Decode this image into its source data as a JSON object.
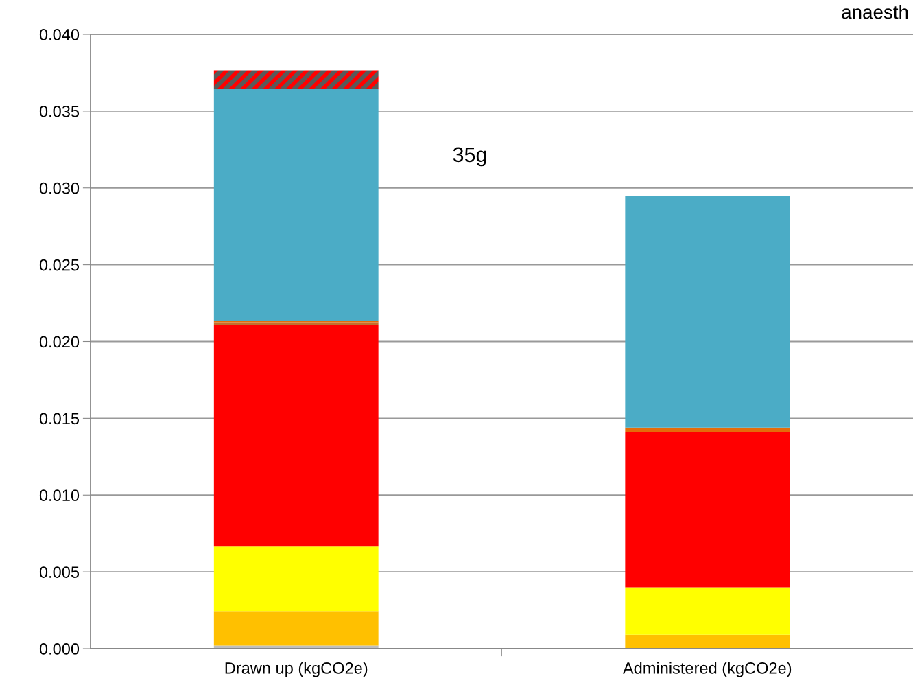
{
  "chart_data": {
    "type": "bar",
    "stacked": true,
    "categories": [
      "Drawn up (kgCO2e)",
      "Administered (kgCO2e)"
    ],
    "series": [
      {
        "color": "#bfbfbf",
        "values": [
          0.0002,
          null
        ]
      },
      {
        "color": "#ffc000",
        "values": [
          0.00225,
          0.0009
        ]
      },
      {
        "color": "#ffff00",
        "values": [
          0.0042,
          0.0031
        ]
      },
      {
        "color": "#ff0000",
        "values": [
          0.0144,
          0.0101
        ]
      },
      {
        "color": "#c0702e",
        "values": [
          0.0002,
          null
        ]
      },
      {
        "color": "#e46c0a",
        "values": [
          0.0001,
          0.0003
        ]
      },
      {
        "color": "#4bacc6",
        "values": [
          0.0151,
          0.0151
        ]
      },
      {
        "color": "#595959",
        "values": [
          0.0012,
          null
        ]
      }
    ],
    "ylim": [
      0,
      0.04
    ],
    "yticks": [
      {
        "value": 0,
        "label": "0.000"
      },
      {
        "value": 0.005,
        "label": "0.005"
      },
      {
        "value": 0.01,
        "label": "0.010"
      },
      {
        "value": 0.015,
        "label": "0.015"
      },
      {
        "value": 0.02,
        "label": "0.020"
      },
      {
        "value": 0.025,
        "label": "0.025"
      },
      {
        "value": 0.03,
        "label": "0.030"
      },
      {
        "value": 0.035,
        "label": "0.035"
      },
      {
        "value": 0.04,
        "label": "0.040"
      }
    ],
    "grid": "y",
    "annotations": [
      "35g",
      "anaesth"
    ]
  }
}
